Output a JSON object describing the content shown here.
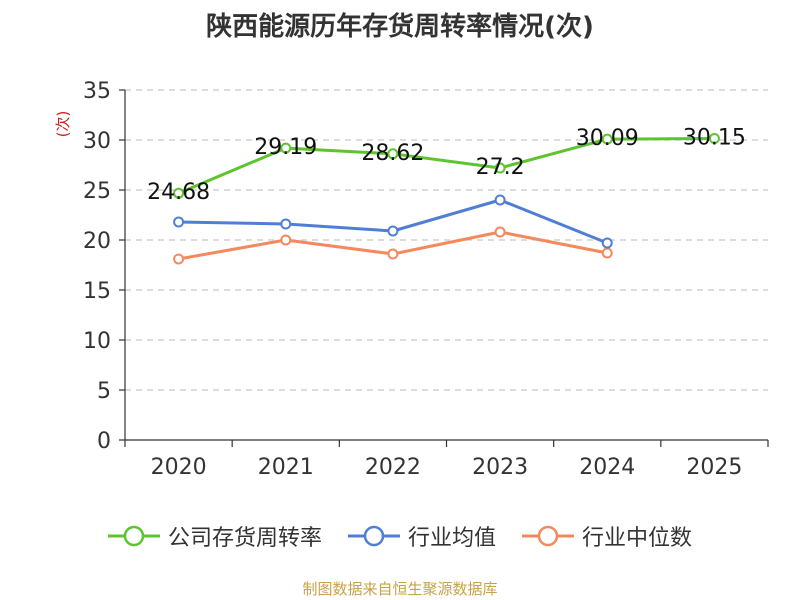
{
  "chart_data": {
    "type": "line",
    "title": "陕西能源历年存货周转率情况(次)",
    "ylabel": "(次)",
    "categories": [
      "2020",
      "2021",
      "2022",
      "2023",
      "2024",
      "2025"
    ],
    "ylim": [
      0,
      35
    ],
    "yticks": [
      "0",
      "5",
      "10",
      "15",
      "20",
      "25",
      "30",
      "35"
    ],
    "grid": true,
    "legend_position": "bottom",
    "series": [
      {
        "name": "公司存货周转率",
        "color": "#5dc430",
        "values": [
          24.68,
          29.19,
          28.62,
          27.2,
          30.09,
          30.15
        ],
        "labels": [
          "24.68",
          "29.19",
          "28.62",
          "27.2",
          "30.09",
          "30.15"
        ]
      },
      {
        "name": "行业均值",
        "color": "#4f7fd4",
        "values": [
          21.8,
          21.6,
          20.9,
          24.0,
          19.7,
          null
        ]
      },
      {
        "name": "行业中位数",
        "color": "#f3895d",
        "values": [
          18.1,
          20.0,
          18.6,
          20.8,
          18.7,
          null
        ]
      }
    ],
    "source": "制图数据来自恒生聚源数据库"
  }
}
